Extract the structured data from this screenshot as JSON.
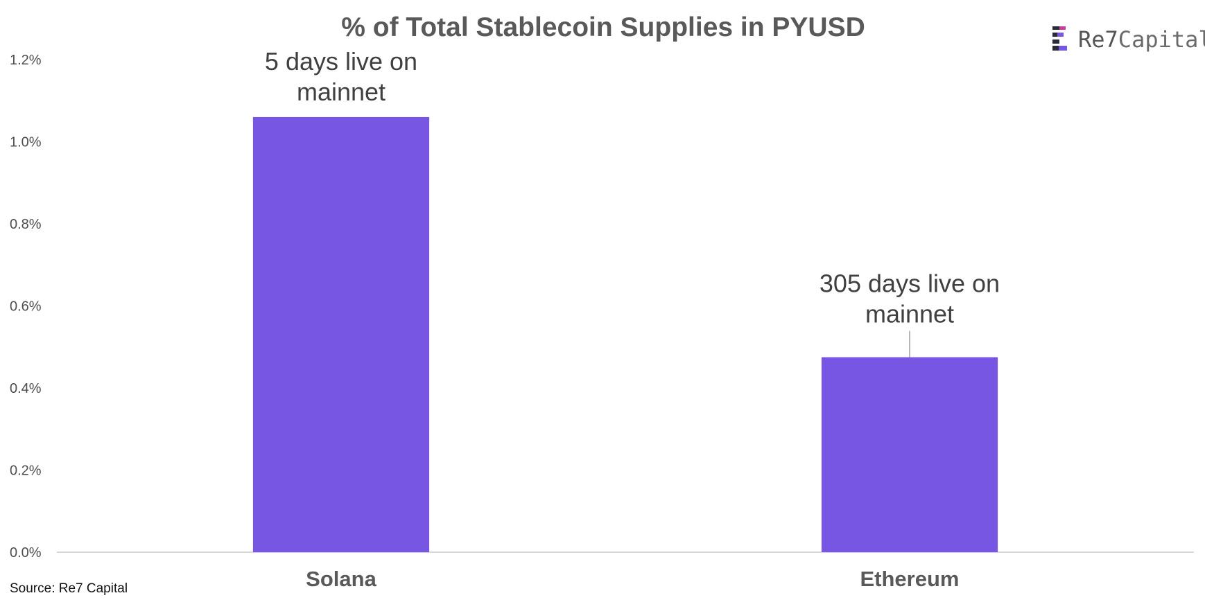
{
  "chart_data": {
    "type": "bar",
    "title": "% of Total Stablecoin Supplies in PYUSD",
    "categories": [
      "Solana",
      "Ethereum"
    ],
    "values": [
      1.06,
      0.475
    ],
    "value_unit": "%",
    "ylim": [
      0,
      1.2
    ],
    "yticks": [
      0.0,
      0.2,
      0.4,
      0.6,
      0.8,
      1.0,
      1.2
    ],
    "ytick_labels": [
      "0.0%",
      "0.2%",
      "0.4%",
      "0.6%",
      "0.8%",
      "1.0%",
      "1.2%"
    ],
    "xlabel": "",
    "ylabel": "",
    "grid": false,
    "bar_color": "#7656e2",
    "annotations": [
      {
        "category": "Solana",
        "lines": [
          "5 days live on",
          "mainnet"
        ]
      },
      {
        "category": "Ethereum",
        "lines": [
          "305 days live on",
          "mainnet"
        ]
      }
    ]
  },
  "source": "Source: Re7 Capital",
  "logo": {
    "text_strong": "Re7",
    "text_light": "Capital",
    "colors": [
      "#2b2b3b",
      "#7656e2",
      "#c93fa0"
    ]
  }
}
